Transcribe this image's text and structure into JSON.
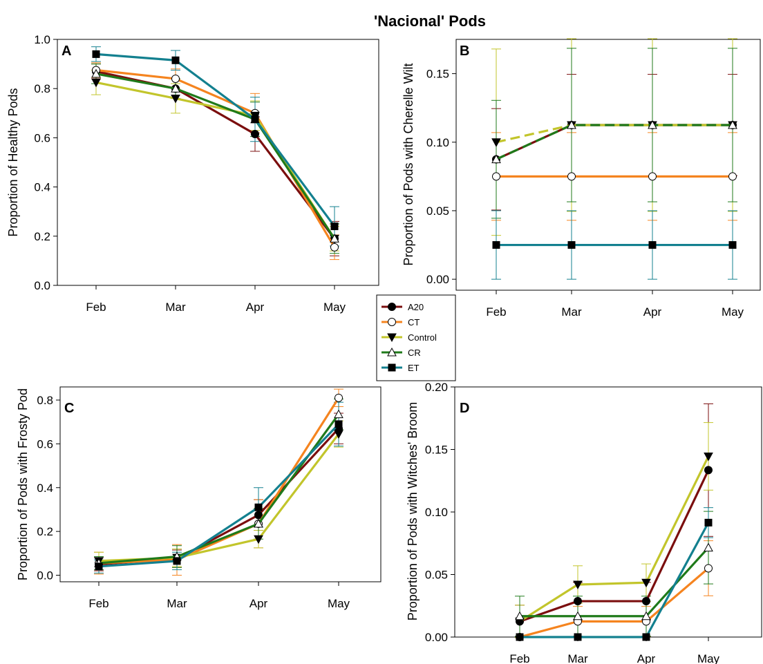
{
  "figure_title": "'Nacional' Pods",
  "series_styles": [
    {
      "name": "A20",
      "color": "#7b0e0e",
      "marker": "circle-filled",
      "dash": "solid"
    },
    {
      "name": "CT",
      "color": "#f5841f",
      "marker": "circle-open",
      "dash": "solid"
    },
    {
      "name": "Control",
      "color": "#c2c52b",
      "marker": "triangle-down-filled",
      "dash": "solid"
    },
    {
      "name": "CR",
      "color": "#1f7a1a",
      "marker": "triangle-up-open",
      "dash": "solid"
    },
    {
      "name": "ET",
      "color": "#13808f",
      "marker": "square-filled",
      "dash": "solid"
    }
  ],
  "chart_data": [
    {
      "panel": "A",
      "type": "line",
      "categories": [
        "Feb",
        "Mar",
        "Apr",
        "May"
      ],
      "ylabel": "Proportion of Healthy Pods",
      "ylim": [
        0,
        1.0
      ],
      "yticks": [
        "0.0",
        "0.2",
        "0.4",
        "0.6",
        "0.8",
        "1.0"
      ],
      "series": [
        {
          "name": "A20",
          "values": [
            0.87,
            0.8,
            0.615,
            0.19
          ],
          "err": [
            0.03,
            0.04,
            0.07,
            0.07
          ]
        },
        {
          "name": "CT",
          "values": [
            0.875,
            0.84,
            0.7,
            0.155
          ],
          "err": [
            0.03,
            0.04,
            0.08,
            0.05
          ]
        },
        {
          "name": "Control",
          "values": [
            0.825,
            0.76,
            0.69,
            0.19
          ],
          "err": [
            0.05,
            0.06,
            0.06,
            0.05
          ]
        },
        {
          "name": "CR",
          "values": [
            0.86,
            0.8,
            0.675,
            0.19
          ],
          "err": [
            0.04,
            0.04,
            0.07,
            0.06
          ]
        },
        {
          "name": "ET",
          "values": [
            0.94,
            0.915,
            0.675,
            0.24
          ],
          "err": [
            0.03,
            0.04,
            0.09,
            0.08
          ]
        }
      ]
    },
    {
      "panel": "B",
      "type": "line",
      "categories": [
        "Feb",
        "Mar",
        "Apr",
        "May"
      ],
      "ylabel": "Proportion of Pods with Cherelle Wilt",
      "ylim": [
        -0.008,
        0.175
      ],
      "yticks": [
        "0.00",
        "0.05",
        "0.10",
        "0.15"
      ],
      "series": [
        {
          "name": "A20",
          "values": [
            0.0875,
            0.1125,
            0.1125,
            0.1125
          ],
          "err": [
            0.037,
            0.037,
            0.037,
            0.037
          ]
        },
        {
          "name": "CT",
          "values": [
            0.075,
            0.075,
            0.075,
            0.075
          ],
          "err": [
            0.032,
            0.032,
            0.032,
            0.032
          ]
        },
        {
          "name": "Control",
          "values": [
            0.1,
            0.1125,
            0.1125,
            0.1125
          ],
          "err": [
            0.068,
            0.063,
            0.063,
            0.063
          ],
          "dash": "dashed"
        },
        {
          "name": "CR",
          "values": [
            0.0875,
            0.1125,
            0.1125,
            0.1125
          ],
          "err": [
            0.043,
            0.056,
            0.056,
            0.056
          ],
          "dash": "dashed"
        },
        {
          "name": "ET",
          "values": [
            0.025,
            0.025,
            0.025,
            0.025
          ],
          "err": [
            0.025,
            0.025,
            0.025,
            0.025
          ]
        }
      ]
    },
    {
      "panel": "C",
      "type": "line",
      "categories": [
        "Feb",
        "Mar",
        "Apr",
        "May"
      ],
      "ylabel": "Proportion of Pods with Frosty Pod",
      "ylim": [
        -0.03,
        0.86
      ],
      "yticks": [
        "0.0",
        "0.2",
        "0.4",
        "0.6",
        "0.8"
      ],
      "series": [
        {
          "name": "A20",
          "values": [
            0.05,
            0.075,
            0.275,
            0.67
          ],
          "err": [
            0.03,
            0.04,
            0.07,
            0.07
          ]
        },
        {
          "name": "CT",
          "values": [
            0.055,
            0.07,
            0.235,
            0.81
          ],
          "err": [
            0.05,
            0.07,
            0.11,
            0.04
          ]
        },
        {
          "name": "Control",
          "values": [
            0.065,
            0.08,
            0.165,
            0.645
          ],
          "err": [
            0.04,
            0.04,
            0.04,
            0.06
          ]
        },
        {
          "name": "CR",
          "values": [
            0.055,
            0.085,
            0.235,
            0.735
          ],
          "err": [
            0.03,
            0.05,
            0.07,
            0.07
          ]
        },
        {
          "name": "ET",
          "values": [
            0.04,
            0.065,
            0.31,
            0.69
          ],
          "err": [
            0.03,
            0.04,
            0.09,
            0.1
          ]
        }
      ]
    },
    {
      "panel": "D",
      "type": "line",
      "categories": [
        "Feb",
        "Mar",
        "Apr",
        "May"
      ],
      "ylabel": "Proportion of Pods with Witches' Broom",
      "ylim": [
        0,
        0.2
      ],
      "yticks": [
        "0.00",
        "0.05",
        "0.10",
        "0.15",
        "0.20"
      ],
      "series": [
        {
          "name": "A20",
          "values": [
            0.0125,
            0.0287,
            0.0287,
            0.1335
          ],
          "err": [
            0.013,
            0.015,
            0.015,
            0.053
          ]
        },
        {
          "name": "CT",
          "values": [
            0.0,
            0.0125,
            0.0125,
            0.055
          ],
          "err": [
            0.0,
            0.012,
            0.012,
            0.022
          ]
        },
        {
          "name": "Control",
          "values": [
            0.0125,
            0.042,
            0.0435,
            0.1445
          ],
          "err": [
            0.013,
            0.015,
            0.015,
            0.027
          ]
        },
        {
          "name": "CR",
          "values": [
            0.0167,
            0.0167,
            0.0167,
            0.0715
          ],
          "err": [
            0.016,
            0.016,
            0.016,
            0.029
          ]
        },
        {
          "name": "ET",
          "values": [
            0.0,
            0.0,
            0.0,
            0.0915
          ],
          "err": [
            0.0,
            0.0,
            0.0,
            0.012
          ]
        }
      ]
    }
  ]
}
